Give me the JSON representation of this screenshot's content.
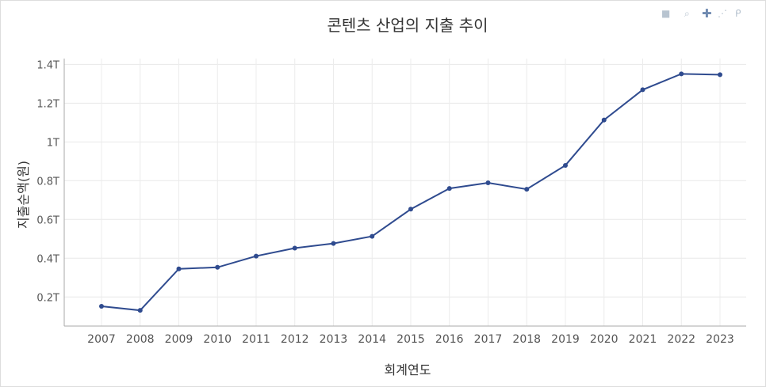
{
  "chart_data": {
    "type": "line",
    "title": "콘텐츠 산업의 지출 추이",
    "xlabel": "회계연도",
    "ylabel": "지출순액(원)",
    "categories": [
      "2007",
      "2008",
      "2009",
      "2010",
      "2011",
      "2012",
      "2013",
      "2014",
      "2015",
      "2016",
      "2017",
      "2018",
      "2019",
      "2020",
      "2021",
      "2022",
      "2023"
    ],
    "values": [
      152000000000.0,
      131000000000.0,
      345000000000.0,
      353000000000.0,
      411000000000.0,
      452000000000.0,
      476000000000.0,
      513000000000.0,
      653000000000.0,
      760000000000.0,
      789000000000.0,
      756000000000.0,
      879000000000.0,
      1113000000000.0,
      1269000000000.0,
      1351000000000.0,
      1347000000000.0
    ],
    "yticks": [
      200000000000.0,
      400000000000.0,
      600000000000.0,
      800000000000.0,
      1000000000000.0,
      1200000000000.0,
      1400000000000.0
    ],
    "ytick_labels": [
      "0.2T",
      "0.4T",
      "0.6T",
      "0.8T",
      "1T",
      "1.2T",
      "1.4T"
    ],
    "ylim": [
      50000000000.0,
      1430000000000.0
    ],
    "grid": true,
    "line_color": "#2f4b8f"
  },
  "modebar": {
    "icons": [
      "camera-icon",
      "zoom-icon",
      "pan-icon",
      "box-select-icon",
      "lasso-icon"
    ]
  }
}
